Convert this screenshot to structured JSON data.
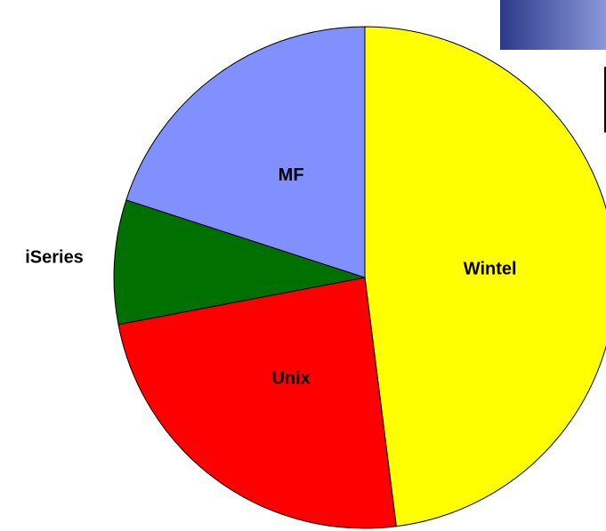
{
  "chart_data": {
    "type": "pie",
    "categories": [
      "Wintel",
      "Unix",
      "iSeries",
      "MF"
    ],
    "values": [
      48,
      24,
      8,
      20
    ],
    "colors": [
      "#ffff00",
      "#ff0000",
      "#007000",
      "#8090ff"
    ],
    "start_angle": 0,
    "direction": "clockwise"
  }
}
